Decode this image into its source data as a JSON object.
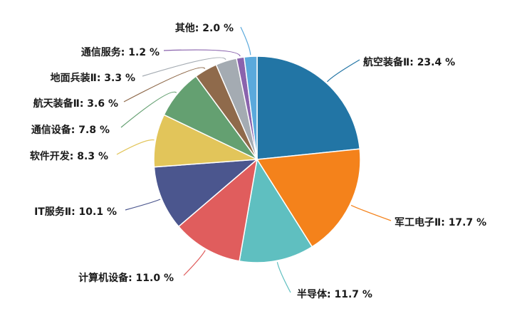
{
  "chart_data": {
    "type": "pie",
    "title": "",
    "value_suffix": " %",
    "slices": [
      {
        "label": "航空装备Ⅱ",
        "value": 23.4,
        "color": "#2275a5"
      },
      {
        "label": "军工电子Ⅱ",
        "value": 17.7,
        "color": "#f4821b"
      },
      {
        "label": "半导体",
        "value": 11.7,
        "color": "#5fbfc0"
      },
      {
        "label": "计算机设备",
        "value": 11.0,
        "color": "#e05d5d"
      },
      {
        "label": "IT服务Ⅱ",
        "value": 10.1,
        "color": "#4b568e"
      },
      {
        "label": "软件开发",
        "value": 8.3,
        "color": "#e2c55a"
      },
      {
        "label": "通信设备",
        "value": 7.8,
        "color": "#64a071"
      },
      {
        "label": "航天装备Ⅱ",
        "value": 3.6,
        "color": "#8f6a4b"
      },
      {
        "label": "地面兵装Ⅱ",
        "value": 3.3,
        "color": "#a4abb2"
      },
      {
        "label": "通信服务",
        "value": 1.2,
        "color": "#8a63ad"
      },
      {
        "label": "其他",
        "value": 2.0,
        "color": "#5aa9dc"
      }
    ]
  }
}
